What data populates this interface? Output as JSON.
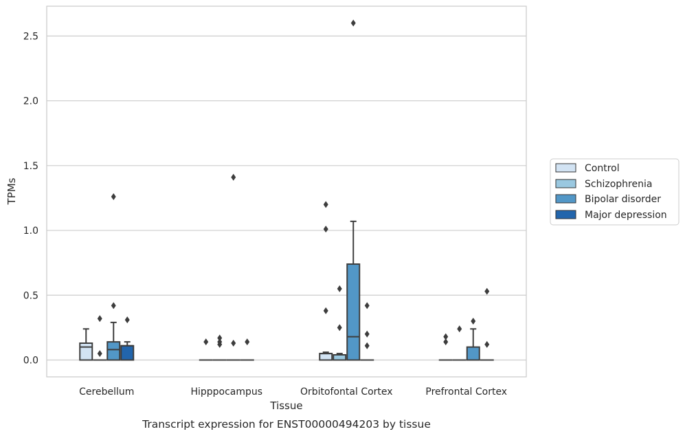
{
  "chart_data": {
    "type": "box",
    "xlabel": "Tissue",
    "ylabel": "TPMs",
    "caption": "Transcript expression for ENST00000494203 by tissue",
    "ylim": [
      -0.13,
      2.73
    ],
    "yticks": [
      0.0,
      0.5,
      1.0,
      1.5,
      2.0,
      2.5
    ],
    "ytick_labels": [
      "0.0",
      "0.5",
      "1.0",
      "1.5",
      "2.0",
      "2.5"
    ],
    "grid": "horizontal",
    "legend_position": "right",
    "categories": [
      "Cerebellum",
      "Hipppocampus",
      "Orbitofontal Cortex",
      "Prefrontal Cortex"
    ],
    "series": [
      {
        "name": "Control",
        "color": "#d2e3f3",
        "boxes": [
          {
            "category": "Cerebellum",
            "q1": 0.0,
            "median": 0.1,
            "q3": 0.13,
            "whisker_low": 0.0,
            "whisker_high": 0.24,
            "outliers": []
          },
          {
            "category": "Hipppocampus",
            "q1": 0.0,
            "median": 0.0,
            "q3": 0.0,
            "whisker_low": 0.0,
            "whisker_high": 0.0,
            "outliers": [
              0.14
            ]
          },
          {
            "category": "Orbitofontal Cortex",
            "q1": 0.0,
            "median": 0.05,
            "q3": 0.05,
            "whisker_low": 0.0,
            "whisker_high": 0.06,
            "outliers": [
              1.2,
              1.01,
              0.38
            ]
          },
          {
            "category": "Prefrontal Cortex",
            "q1": 0.0,
            "median": 0.0,
            "q3": 0.0,
            "whisker_low": 0.0,
            "whisker_high": 0.0,
            "outliers": [
              0.18,
              0.14
            ]
          }
        ]
      },
      {
        "name": "Schizophrenia",
        "color": "#9ac8e0",
        "boxes": [
          {
            "category": "Cerebellum",
            "q1": 0.0,
            "median": 0.0,
            "q3": 0.0,
            "whisker_low": 0.0,
            "whisker_high": 0.0,
            "outliers": [
              0.32,
              0.05
            ]
          },
          {
            "category": "Hipppocampus",
            "q1": 0.0,
            "median": 0.0,
            "q3": 0.0,
            "whisker_low": 0.0,
            "whisker_high": 0.0,
            "outliers": [
              0.17,
              0.14,
              0.12
            ]
          },
          {
            "category": "Orbitofontal Cortex",
            "q1": 0.0,
            "median": 0.04,
            "q3": 0.04,
            "whisker_low": 0.0,
            "whisker_high": 0.05,
            "outliers": [
              0.55,
              0.25
            ]
          },
          {
            "category": "Prefrontal Cortex",
            "q1": 0.0,
            "median": 0.0,
            "q3": 0.0,
            "whisker_low": 0.0,
            "whisker_high": 0.0,
            "outliers": [
              0.24
            ]
          }
        ]
      },
      {
        "name": "Bipolar disorder",
        "color": "#5297c7",
        "boxes": [
          {
            "category": "Cerebellum",
            "q1": 0.0,
            "median": 0.08,
            "q3": 0.14,
            "whisker_low": 0.0,
            "whisker_high": 0.29,
            "outliers": [
              1.26,
              0.42
            ]
          },
          {
            "category": "Hipppocampus",
            "q1": 0.0,
            "median": 0.0,
            "q3": 0.0,
            "whisker_low": 0.0,
            "whisker_high": 0.0,
            "outliers": [
              1.41,
              0.13
            ]
          },
          {
            "category": "Orbitofontal Cortex",
            "q1": 0.0,
            "median": 0.18,
            "q3": 0.74,
            "whisker_low": 0.0,
            "whisker_high": 1.07,
            "outliers": [
              2.6
            ]
          },
          {
            "category": "Prefrontal Cortex",
            "q1": 0.0,
            "median": 0.0,
            "q3": 0.1,
            "whisker_low": 0.0,
            "whisker_high": 0.24,
            "outliers": [
              0.3
            ]
          }
        ]
      },
      {
        "name": "Major depression",
        "color": "#2265ac",
        "boxes": [
          {
            "category": "Cerebellum",
            "q1": 0.0,
            "median": 0.11,
            "q3": 0.11,
            "whisker_low": 0.0,
            "whisker_high": 0.14,
            "outliers": [
              0.31
            ]
          },
          {
            "category": "Hipppocampus",
            "q1": 0.0,
            "median": 0.0,
            "q3": 0.0,
            "whisker_low": 0.0,
            "whisker_high": 0.0,
            "outliers": [
              0.14
            ]
          },
          {
            "category": "Orbitofontal Cortex",
            "q1": 0.0,
            "median": 0.0,
            "q3": 0.0,
            "whisker_low": 0.0,
            "whisker_high": 0.0,
            "outliers": [
              0.42,
              0.2,
              0.11
            ]
          },
          {
            "category": "Prefrontal Cortex",
            "q1": 0.0,
            "median": 0.0,
            "q3": 0.0,
            "whisker_low": 0.0,
            "whisker_high": 0.0,
            "outliers": [
              0.53,
              0.12
            ]
          }
        ]
      }
    ]
  }
}
